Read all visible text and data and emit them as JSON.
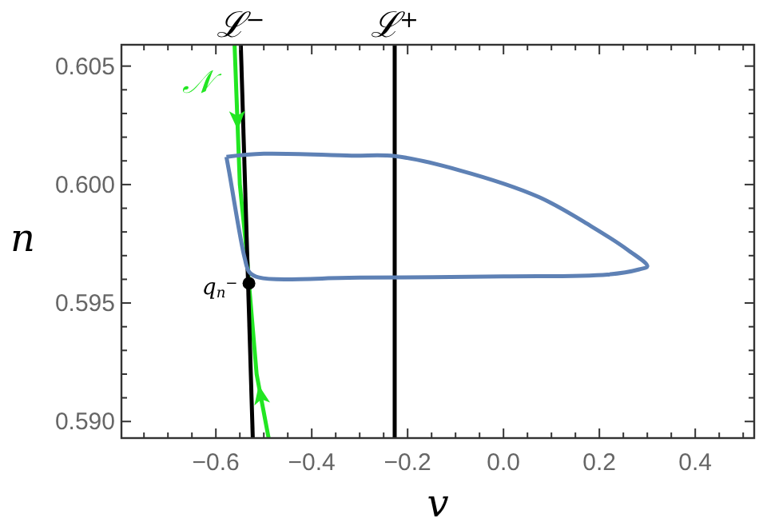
{
  "chart_data": {
    "type": "line",
    "xlabel": "v",
    "ylabel": "n",
    "xlim": [
      -0.797,
      0.523
    ],
    "ylim": [
      0.5893,
      0.6059
    ],
    "xticks": [
      {
        "value": -0.75,
        "label": null
      },
      {
        "value": -0.7,
        "label": null
      },
      {
        "value": -0.65,
        "label": null
      },
      {
        "value": -0.6,
        "label": "−0.6"
      },
      {
        "value": -0.55,
        "label": null
      },
      {
        "value": -0.5,
        "label": null
      },
      {
        "value": -0.45,
        "label": null
      },
      {
        "value": -0.4,
        "label": "−0.4"
      },
      {
        "value": -0.35,
        "label": null
      },
      {
        "value": -0.3,
        "label": null
      },
      {
        "value": -0.25,
        "label": null
      },
      {
        "value": -0.2,
        "label": "−0.2"
      },
      {
        "value": -0.15,
        "label": null
      },
      {
        "value": -0.1,
        "label": null
      },
      {
        "value": -0.05,
        "label": null
      },
      {
        "value": 0,
        "label": "0.0"
      },
      {
        "value": 0.05,
        "label": null
      },
      {
        "value": 0.1,
        "label": null
      },
      {
        "value": 0.15,
        "label": null
      },
      {
        "value": 0.2,
        "label": "0.2"
      },
      {
        "value": 0.25,
        "label": null
      },
      {
        "value": 0.3,
        "label": null
      },
      {
        "value": 0.35,
        "label": null
      },
      {
        "value": 0.4,
        "label": "0.4"
      },
      {
        "value": 0.45,
        "label": null
      },
      {
        "value": 0.5,
        "label": null
      }
    ],
    "yticks": [
      {
        "value": 0.59,
        "label": "0.590"
      },
      {
        "value": 0.591,
        "label": null
      },
      {
        "value": 0.592,
        "label": null
      },
      {
        "value": 0.593,
        "label": null
      },
      {
        "value": 0.594,
        "label": null
      },
      {
        "value": 0.595,
        "label": "0.595"
      },
      {
        "value": 0.596,
        "label": null
      },
      {
        "value": 0.597,
        "label": null
      },
      {
        "value": 0.598,
        "label": null
      },
      {
        "value": 0.599,
        "label": null
      },
      {
        "value": 0.6,
        "label": "0.600"
      },
      {
        "value": 0.601,
        "label": null
      },
      {
        "value": 0.602,
        "label": null
      },
      {
        "value": 0.603,
        "label": null
      },
      {
        "value": 0.604,
        "label": null
      },
      {
        "value": 0.605,
        "label": "0.605"
      }
    ],
    "grid": false,
    "series": [
      {
        "name": "𝒩",
        "color": "#22e622",
        "x": [
          -0.561,
          -0.55,
          -0.535,
          -0.531,
          -0.515,
          -0.49
        ],
        "values": [
          0.6059,
          0.6,
          0.597,
          0.59583,
          0.592,
          0.5893
        ]
      },
      {
        "color": "#000000",
        "x": [
          -0.548,
          -0.523
        ],
        "values": [
          0.6059,
          0.5893
        ]
      },
      {
        "color": "#000000",
        "x": [
          -0.227,
          -0.227
        ],
        "values": [
          0.6059,
          0.5893
        ]
      },
      {
        "type": "scatter",
        "marker": "circle",
        "color": "#000000",
        "x": [
          -0.531
        ],
        "values": [
          0.59583
        ]
      }
    ],
    "annotations": [
      {
        "text": "ℒ$^{−}$",
        "x": -0.548,
        "y": 0.6059
      },
      {
        "text": "ℒ$^{+}$",
        "x": -0.227,
        "y": 0.6059
      },
      {
        "text": "q$_{n}$$^{−}$",
        "x": -0.531,
        "y": 0.59583
      }
    ]
  }
}
